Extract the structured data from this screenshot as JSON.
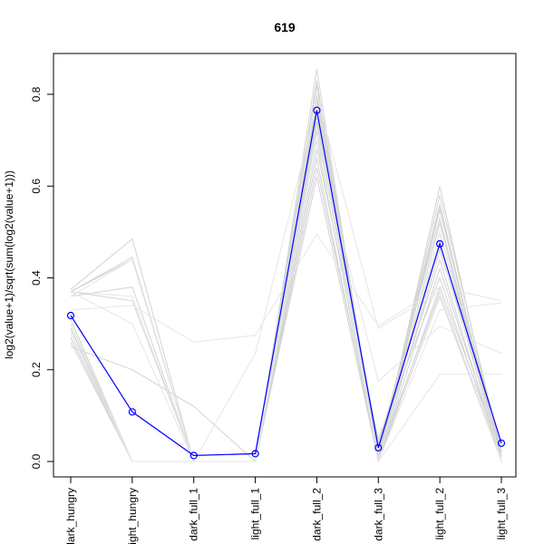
{
  "chart_data": {
    "type": "line",
    "title": "619",
    "xlabel": "",
    "ylabel": "log2(value+1)/sqrt(sum(log2(value+1)))",
    "categories": [
      "dark_hungry",
      "light_hungry",
      "dark_full_1",
      "light_full_1",
      "dark_full_2",
      "dark_full_3",
      "light_full_2",
      "light_full_3"
    ],
    "ylim": [
      0.0,
      0.8
    ],
    "yticks": [
      0.0,
      0.2,
      0.4,
      0.6,
      0.8
    ],
    "grid": false,
    "legend": "none",
    "highlight": {
      "color": "#0000ff",
      "marker": "open-circle",
      "values": [
        0.318,
        0.108,
        0.013,
        0.017,
        0.765,
        0.03,
        0.474,
        0.04
      ]
    },
    "background_series": {
      "color": "#d3d3d3",
      "lines": [
        [
          0.37,
          0.445,
          0.0,
          0.0,
          0.855,
          0.0,
          0.6,
          0.0
        ],
        [
          0.37,
          0.44,
          0.0,
          0.0,
          0.83,
          0.01,
          0.58,
          0.02
        ],
        [
          0.3,
          0.0,
          0.0,
          0.0,
          0.8,
          0.02,
          0.56,
          0.0
        ],
        [
          0.29,
          0.0,
          0.0,
          0.0,
          0.79,
          0.0,
          0.55,
          0.01
        ],
        [
          0.28,
          0.0,
          0.0,
          0.0,
          0.78,
          0.03,
          0.53,
          0.0
        ],
        [
          0.27,
          0.0,
          0.0,
          0.0,
          0.76,
          0.0,
          0.5,
          0.02
        ],
        [
          0.26,
          0.0,
          0.0,
          0.0,
          0.75,
          0.04,
          0.48,
          0.0
        ],
        [
          0.29,
          0.0,
          0.0,
          0.0,
          0.74,
          0.0,
          0.46,
          0.03
        ],
        [
          0.3,
          0.0,
          0.0,
          0.0,
          0.72,
          0.02,
          0.44,
          0.0
        ],
        [
          0.28,
          0.0,
          0.0,
          0.0,
          0.7,
          0.0,
          0.42,
          0.01
        ],
        [
          0.31,
          0.0,
          0.0,
          0.0,
          0.68,
          0.05,
          0.4,
          0.0
        ],
        [
          0.27,
          0.0,
          0.0,
          0.0,
          0.66,
          0.0,
          0.38,
          0.02
        ],
        [
          0.29,
          0.0,
          0.0,
          0.0,
          0.64,
          0.01,
          0.37,
          0.0
        ],
        [
          0.375,
          0.485,
          0.0,
          0.0,
          0.62,
          0.0,
          0.36,
          0.0
        ],
        [
          0.36,
          0.38,
          0.0,
          0.0,
          0.8,
          0.0,
          0.55,
          0.0
        ],
        [
          0.25,
          0.2,
          0.12,
          0.0,
          0.78,
          0.0,
          0.52,
          0.0
        ],
        [
          0.37,
          0.35,
          0.0,
          0.0,
          0.82,
          0.0,
          0.56,
          0.0
        ],
        [
          0.33,
          0.34,
          0.26,
          0.275,
          0.495,
          0.295,
          0.38,
          0.35
        ],
        [
          0.37,
          0.3,
          0.0,
          0.0,
          0.76,
          0.0,
          0.19,
          0.19
        ],
        [
          0.37,
          0.36,
          0.0,
          0.0,
          0.73,
          0.0,
          0.33,
          0.345
        ],
        [
          0.3,
          0.0,
          0.0,
          0.235,
          0.78,
          0.0,
          0.5,
          0.0
        ],
        [
          0.36,
          0.44,
          0.0,
          0.0,
          0.7,
          0.175,
          0.295,
          0.235
        ],
        [
          0.28,
          0.0,
          0.0,
          0.0,
          0.8,
          0.29,
          0.37,
          0.0
        ]
      ]
    }
  }
}
